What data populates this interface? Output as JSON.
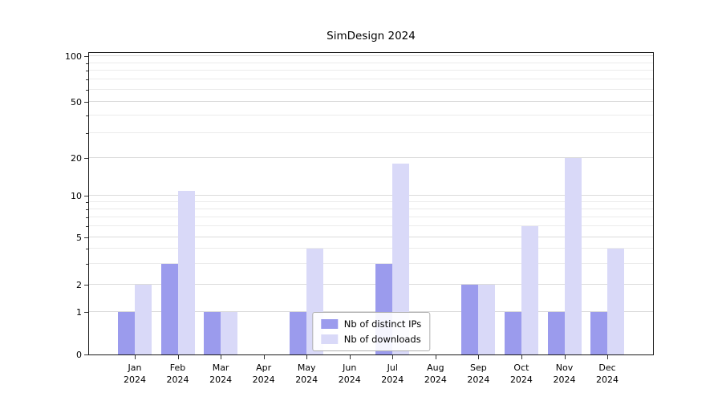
{
  "chart_data": {
    "type": "bar",
    "title": "SimDesign 2024",
    "yscale": "symlog",
    "grid": true,
    "ylim": [
      0,
      110
    ],
    "ytick_values": [
      0,
      1,
      2,
      5,
      10,
      20,
      50,
      100
    ],
    "ytick_labels": [
      "0",
      "1",
      "2",
      "5",
      "10",
      "20",
      "50",
      "100"
    ],
    "minor_grid_values": [
      3,
      4,
      6,
      7,
      8,
      9,
      30,
      40,
      60,
      70,
      80,
      90
    ],
    "categories": [
      {
        "month": "Jan",
        "year": "2024"
      },
      {
        "month": "Feb",
        "year": "2024"
      },
      {
        "month": "Mar",
        "year": "2024"
      },
      {
        "month": "Apr",
        "year": "2024"
      },
      {
        "month": "May",
        "year": "2024"
      },
      {
        "month": "Jun",
        "year": "2024"
      },
      {
        "month": "Jul",
        "year": "2024"
      },
      {
        "month": "Aug",
        "year": "2024"
      },
      {
        "month": "Sep",
        "year": "2024"
      },
      {
        "month": "Oct",
        "year": "2024"
      },
      {
        "month": "Nov",
        "year": "2024"
      },
      {
        "month": "Dec",
        "year": "2024"
      }
    ],
    "series": [
      {
        "name": "Nb of distinct IPs",
        "color": "#9b9bed",
        "values": [
          1,
          3,
          1,
          0,
          1,
          0,
          3,
          0,
          2,
          1,
          1,
          1
        ]
      },
      {
        "name": "Nb of downloads",
        "color": "#d9d9f8",
        "values": [
          2,
          11,
          1,
          0,
          4,
          0,
          18,
          0,
          2,
          6,
          20,
          4
        ]
      }
    ],
    "legend_position": "lower center"
  }
}
